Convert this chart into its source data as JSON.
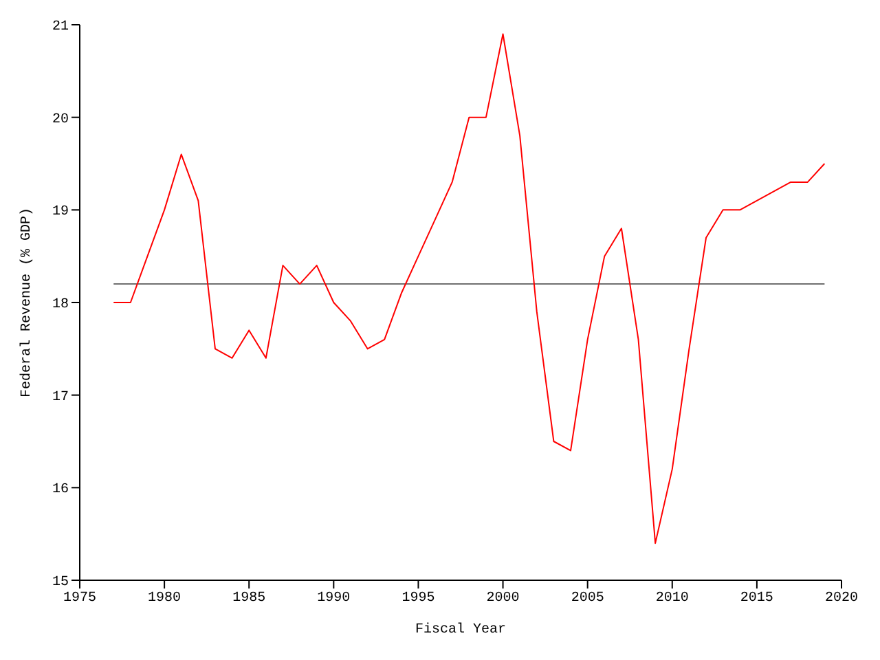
{
  "chart_data": {
    "type": "line",
    "xlabel": "Fiscal Year",
    "ylabel": "Federal Revenue (% GDP)",
    "x": [
      1977,
      1978,
      1979,
      1980,
      1981,
      1982,
      1983,
      1984,
      1985,
      1986,
      1987,
      1988,
      1989,
      1990,
      1991,
      1992,
      1993,
      1994,
      1995,
      1996,
      1997,
      1998,
      1999,
      2000,
      2001,
      2002,
      2003,
      2004,
      2005,
      2006,
      2007,
      2008,
      2009,
      2010,
      2011,
      2012,
      2013,
      2014,
      2015,
      2016,
      2017,
      2018,
      2019
    ],
    "series": [
      {
        "color": "#ff0000",
        "values": [
          18.0,
          18.0,
          18.5,
          19.0,
          19.6,
          19.1,
          17.5,
          17.4,
          17.7,
          17.4,
          18.4,
          18.2,
          18.4,
          18.0,
          17.8,
          17.5,
          17.6,
          18.1,
          18.5,
          18.9,
          19.3,
          20.0,
          20.0,
          20.9,
          19.8,
          17.9,
          16.5,
          16.4,
          17.6,
          18.5,
          18.8,
          17.6,
          15.4,
          16.2,
          17.5,
          18.7,
          19.0,
          19.0,
          19.1,
          19.2,
          19.3,
          19.3,
          19.5
        ]
      }
    ],
    "ref_lines": [
      {
        "axis": "y",
        "value": 18.2,
        "color": "#707070"
      }
    ],
    "xlim": [
      1975,
      2020
    ],
    "xticks": [
      1975,
      1980,
      1985,
      1990,
      1995,
      2000,
      2005,
      2010,
      2015,
      2020
    ],
    "ylim": [
      15,
      21
    ],
    "yticks": [
      15,
      16,
      17,
      18,
      19,
      20,
      21
    ],
    "grid": false,
    "legend": false,
    "marker": "none",
    "line_style": "solid"
  }
}
